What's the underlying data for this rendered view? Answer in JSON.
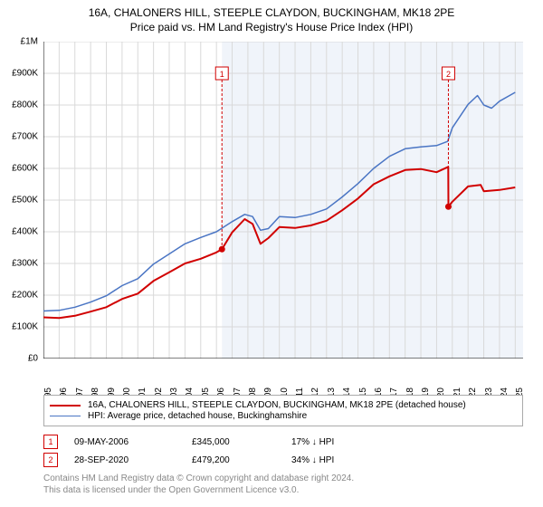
{
  "chart": {
    "type": "line",
    "title_line1": "16A, CHALONERS HILL, STEEPLE CLAYDON, BUCKINGHAM, MK18 2PE",
    "title_line2": "Price paid vs. HM Land Registry's House Price Index (HPI)",
    "title_fontsize": 12,
    "background_color": "#ffffff",
    "plot_bg_left_color": "#ffffff",
    "plot_bg_right_color": "#f0f4fa",
    "grid_color": "#d9d9d9",
    "axis_color": "#000000",
    "y": {
      "min": 0,
      "max": 1000000,
      "ticks": [
        0,
        100000,
        200000,
        300000,
        400000,
        500000,
        600000,
        700000,
        800000,
        900000,
        1000000
      ],
      "labels": [
        "£0",
        "£100K",
        "£200K",
        "£300K",
        "£400K",
        "£500K",
        "£600K",
        "£700K",
        "£800K",
        "£900K",
        "£1M"
      ]
    },
    "x": {
      "min": 1995,
      "max": 2025.5,
      "ticks": [
        1995,
        1996,
        1997,
        1998,
        1999,
        2000,
        2001,
        2002,
        2003,
        2004,
        2005,
        2006,
        2007,
        2008,
        2009,
        2010,
        2011,
        2012,
        2013,
        2014,
        2015,
        2016,
        2017,
        2018,
        2019,
        2020,
        2021,
        2022,
        2023,
        2024,
        2025
      ]
    },
    "band_split_year": 2006.35,
    "series": [
      {
        "id": "property",
        "color": "#d10000",
        "width": 2,
        "label": "16A, CHALONERS HILL, STEEPLE CLAYDON, BUCKINGHAM, MK18 2PE (detached house)",
        "points": [
          [
            1995,
            130000
          ],
          [
            1996,
            128000
          ],
          [
            1997,
            135000
          ],
          [
            1998,
            148000
          ],
          [
            1999,
            162000
          ],
          [
            2000,
            188000
          ],
          [
            2001,
            205000
          ],
          [
            2002,
            245000
          ],
          [
            2003,
            272000
          ],
          [
            2004,
            300000
          ],
          [
            2005,
            315000
          ],
          [
            2006,
            335000
          ],
          [
            2006.35,
            345000
          ],
          [
            2007,
            398000
          ],
          [
            2007.8,
            440000
          ],
          [
            2008.3,
            425000
          ],
          [
            2008.8,
            362000
          ],
          [
            2009.3,
            380000
          ],
          [
            2010,
            415000
          ],
          [
            2011,
            412000
          ],
          [
            2012,
            420000
          ],
          [
            2013,
            435000
          ],
          [
            2014,
            468000
          ],
          [
            2015,
            505000
          ],
          [
            2016,
            550000
          ],
          [
            2017,
            575000
          ],
          [
            2018,
            595000
          ],
          [
            2019,
            598000
          ],
          [
            2020,
            588000
          ],
          [
            2020.74,
            605000
          ],
          [
            2020.75,
            479200
          ],
          [
            2021,
            495000
          ],
          [
            2022,
            543000
          ],
          [
            2022.8,
            548000
          ],
          [
            2023,
            528000
          ],
          [
            2024,
            532000
          ],
          [
            2025,
            540000
          ]
        ]
      },
      {
        "id": "hpi",
        "color": "#4a75c4",
        "width": 1.5,
        "label": "HPI: Average price, detached house, Buckinghamshire",
        "points": [
          [
            1995,
            150000
          ],
          [
            1996,
            152000
          ],
          [
            1997,
            162000
          ],
          [
            1998,
            178000
          ],
          [
            1999,
            198000
          ],
          [
            2000,
            230000
          ],
          [
            2001,
            252000
          ],
          [
            2002,
            298000
          ],
          [
            2003,
            330000
          ],
          [
            2004,
            362000
          ],
          [
            2005,
            382000
          ],
          [
            2006,
            400000
          ],
          [
            2007,
            432000
          ],
          [
            2007.8,
            455000
          ],
          [
            2008.3,
            448000
          ],
          [
            2008.8,
            405000
          ],
          [
            2009.3,
            410000
          ],
          [
            2010,
            448000
          ],
          [
            2011,
            445000
          ],
          [
            2012,
            455000
          ],
          [
            2013,
            472000
          ],
          [
            2014,
            510000
          ],
          [
            2015,
            552000
          ],
          [
            2016,
            600000
          ],
          [
            2017,
            638000
          ],
          [
            2018,
            662000
          ],
          [
            2019,
            668000
          ],
          [
            2020,
            672000
          ],
          [
            2020.7,
            685000
          ],
          [
            2021,
            728000
          ],
          [
            2022,
            802000
          ],
          [
            2022.6,
            830000
          ],
          [
            2023,
            800000
          ],
          [
            2023.5,
            790000
          ],
          [
            2024,
            812000
          ],
          [
            2025,
            840000
          ]
        ]
      }
    ],
    "markers": [
      {
        "n": "1",
        "year": 2006.35,
        "price": 345000,
        "box_y": 900000,
        "color": "#d10000"
      },
      {
        "n": "2",
        "year": 2020.75,
        "price": 479200,
        "box_y": 900000,
        "color": "#d10000"
      }
    ],
    "records": [
      {
        "n": "1",
        "date": "09-MAY-2006",
        "price": "£345,000",
        "diff": "17% ↓ HPI",
        "color": "#d10000"
      },
      {
        "n": "2",
        "date": "28-SEP-2020",
        "price": "£479,200",
        "diff": "34% ↓ HPI",
        "color": "#d10000"
      }
    ],
    "record_col_widths": {
      "date": 130,
      "price": 110,
      "diff": 110
    },
    "footer1": "Contains HM Land Registry data © Crown copyright and database right 2024.",
    "footer2": "This data is licensed under the Open Government Licence v3.0."
  }
}
